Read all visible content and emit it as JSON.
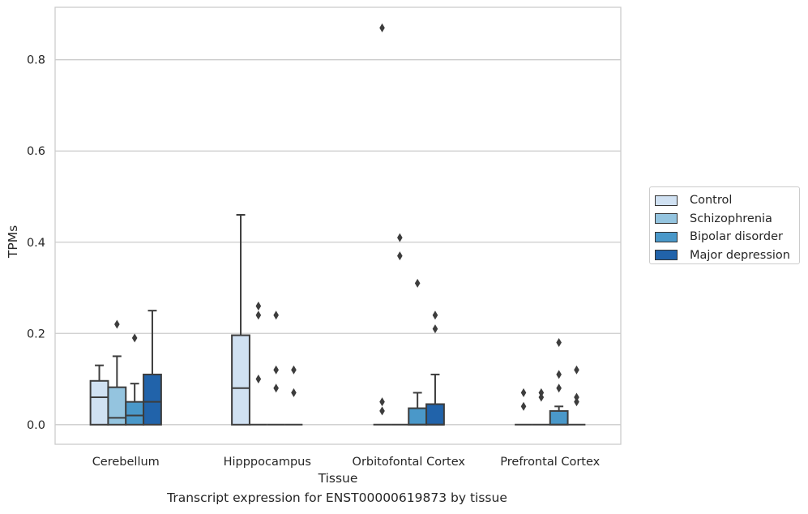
{
  "chart_data": {
    "type": "boxplot",
    "caption": "Transcript expression for ENST00000619873 by tissue",
    "xlabel": "Tissue",
    "ylabel": "TPMs",
    "ylim": [
      -0.043,
      0.915
    ],
    "yticks": [
      0.0,
      0.2,
      0.4,
      0.6,
      0.8
    ],
    "ytick_labels": [
      "0.0",
      "0.2",
      "0.4",
      "0.6",
      "0.8"
    ],
    "grid": "horizontal",
    "legend_position": "right",
    "categories": [
      "Cerebellum",
      "Hipppocampus",
      "Orbitofontal Cortex",
      "Prefrontal Cortex"
    ],
    "series": [
      {
        "name": "Control",
        "color": "#d0e1f2",
        "boxes": [
          {
            "whislo": 0.0,
            "q1": 0.0,
            "med": 0.06,
            "q3": 0.096,
            "whishi": 0.13,
            "fliers": []
          },
          {
            "whislo": 0.0,
            "q1": 0.0,
            "med": 0.08,
            "q3": 0.196,
            "whishi": 0.46,
            "fliers": []
          },
          {
            "whislo": 0.0,
            "q1": 0.0,
            "med": 0.0,
            "q3": 0.0,
            "whishi": 0.0,
            "fliers": [
              0.87,
              0.05,
              0.03
            ]
          },
          {
            "whislo": 0.0,
            "q1": 0.0,
            "med": 0.0,
            "q3": 0.0,
            "whishi": 0.0,
            "fliers": [
              0.07,
              0.04
            ]
          }
        ]
      },
      {
        "name": "Schizophrenia",
        "color": "#94c4df",
        "boxes": [
          {
            "whislo": 0.0,
            "q1": 0.0,
            "med": 0.015,
            "q3": 0.082,
            "whishi": 0.15,
            "fliers": [
              0.22
            ]
          },
          {
            "whislo": 0.0,
            "q1": 0.0,
            "med": 0.0,
            "q3": 0.0,
            "whishi": 0.0,
            "fliers": [
              0.26,
              0.24,
              0.1
            ]
          },
          {
            "whislo": 0.0,
            "q1": 0.0,
            "med": 0.0,
            "q3": 0.0,
            "whishi": 0.0,
            "fliers": [
              0.41,
              0.37
            ]
          },
          {
            "whislo": 0.0,
            "q1": 0.0,
            "med": 0.0,
            "q3": 0.0,
            "whishi": 0.0,
            "fliers": [
              0.07,
              0.06
            ]
          }
        ]
      },
      {
        "name": "Bipolar disorder",
        "color": "#4a98c9",
        "boxes": [
          {
            "whislo": 0.0,
            "q1": 0.0,
            "med": 0.02,
            "q3": 0.05,
            "whishi": 0.09,
            "fliers": [
              0.19
            ]
          },
          {
            "whislo": 0.0,
            "q1": 0.0,
            "med": 0.0,
            "q3": 0.0,
            "whishi": 0.0,
            "fliers": [
              0.24,
              0.12,
              0.08
            ]
          },
          {
            "whislo": 0.0,
            "q1": 0.0,
            "med": 0.0,
            "q3": 0.036,
            "whishi": 0.07,
            "fliers": [
              0.31
            ]
          },
          {
            "whislo": 0.0,
            "q1": 0.0,
            "med": 0.0,
            "q3": 0.03,
            "whishi": 0.04,
            "fliers": [
              0.18,
              0.11,
              0.08
            ]
          }
        ]
      },
      {
        "name": "Major depression",
        "color": "#2163aa",
        "boxes": [
          {
            "whislo": 0.0,
            "q1": 0.0,
            "med": 0.05,
            "q3": 0.11,
            "whishi": 0.25,
            "fliers": []
          },
          {
            "whislo": 0.0,
            "q1": 0.0,
            "med": 0.0,
            "q3": 0.0,
            "whishi": 0.0,
            "fliers": [
              0.12,
              0.07
            ]
          },
          {
            "whislo": 0.0,
            "q1": 0.0,
            "med": 0.0,
            "q3": 0.045,
            "whishi": 0.11,
            "fliers": [
              0.24,
              0.21
            ]
          },
          {
            "whislo": 0.0,
            "q1": 0.0,
            "med": 0.0,
            "q3": 0.0,
            "whishi": 0.0,
            "fliers": [
              0.12,
              0.06,
              0.05
            ]
          }
        ]
      }
    ]
  }
}
